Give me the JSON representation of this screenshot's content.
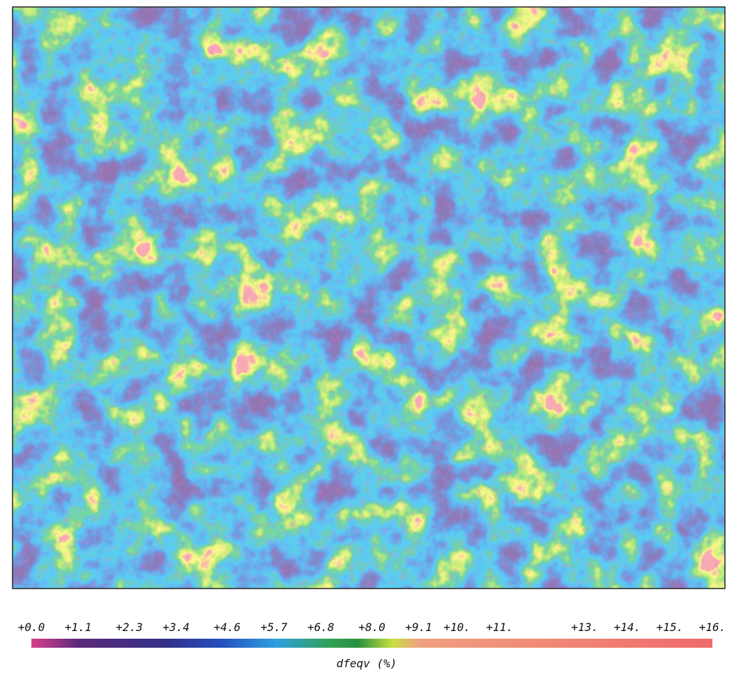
{
  "chart_data": {
    "type": "heatmap",
    "colorbar": {
      "label": "dfeqv (%)",
      "lim": [
        0,
        16
      ],
      "ticks": [
        {
          "value": 0,
          "label": "+0.0"
        },
        {
          "value": 1.1,
          "label": "+1.1"
        },
        {
          "value": 2.3,
          "label": "+2.3"
        },
        {
          "value": 3.4,
          "label": "+3.4"
        },
        {
          "value": 4.6,
          "label": "+4.6"
        },
        {
          "value": 5.7,
          "label": "+5.7"
        },
        {
          "value": 6.8,
          "label": "+6.8"
        },
        {
          "value": 8,
          "label": "+8.0"
        },
        {
          "value": 9.1,
          "label": "+9.1"
        },
        {
          "value": 10,
          "label": "+10."
        },
        {
          "value": 11,
          "label": "+11."
        },
        {
          "value": 13,
          "label": "+13."
        },
        {
          "value": 14,
          "label": "+14."
        },
        {
          "value": 15,
          "label": "+15."
        },
        {
          "value": 16,
          "label": "+16."
        }
      ]
    }
  }
}
